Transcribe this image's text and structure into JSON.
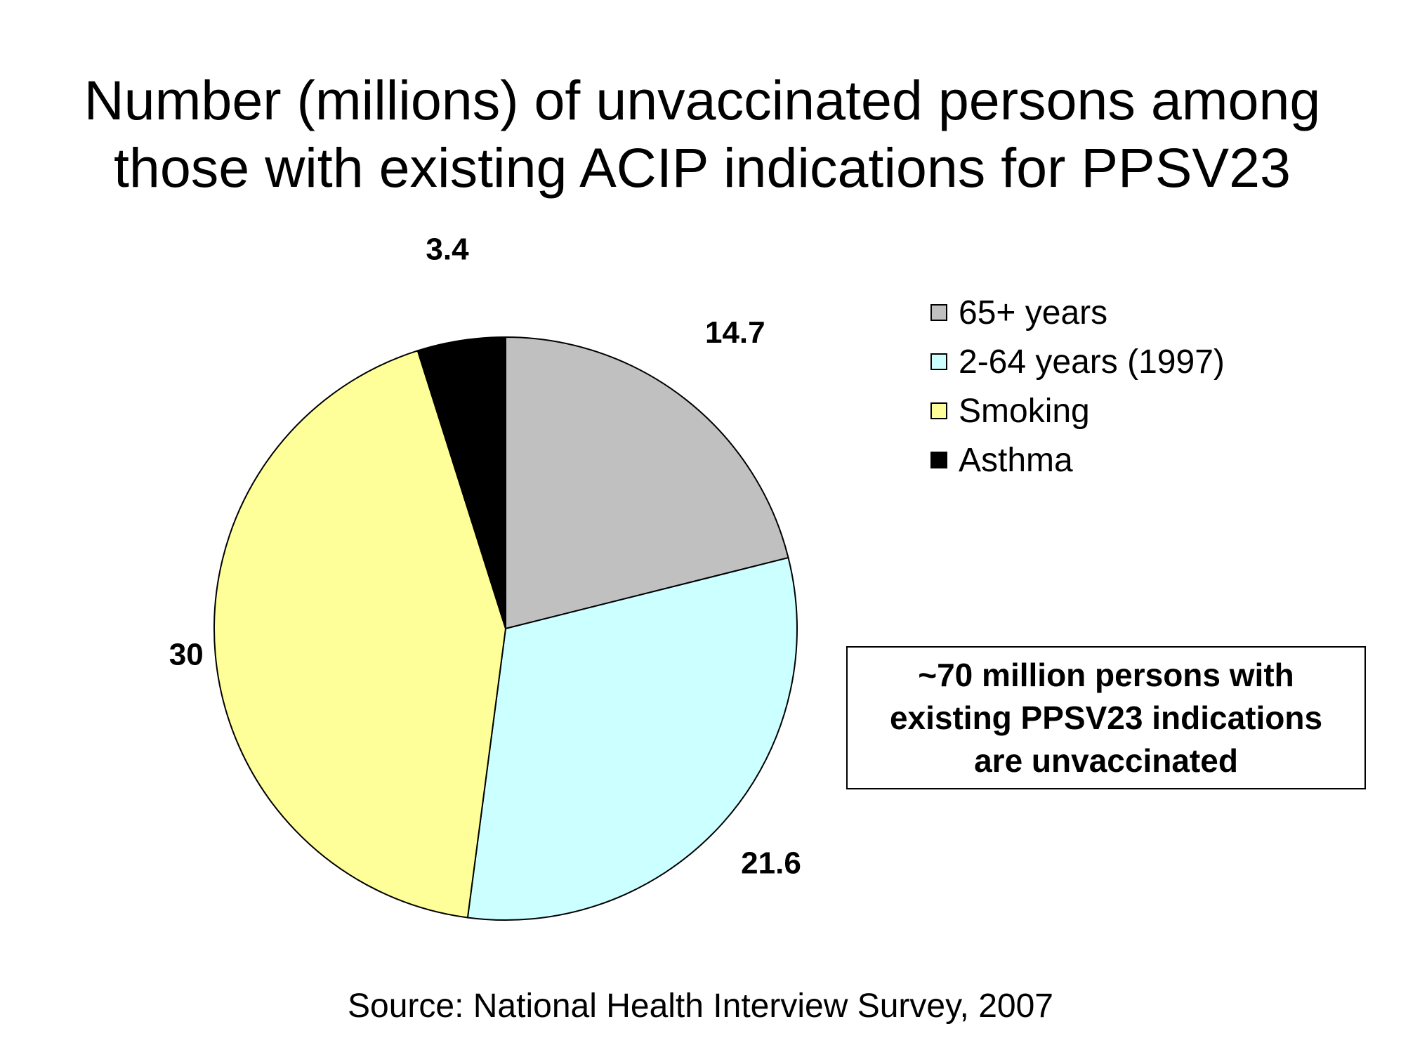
{
  "chart_data": {
    "type": "pie",
    "title": "Number (millions) of unvaccinated persons among those with existing ACIP indications for PPSV23",
    "title_lines": [
      "Number (millions) of unvaccinated persons among",
      "those with existing ACIP indications for PPSV23"
    ],
    "slices": [
      {
        "label": "65+ years",
        "value": 14.7,
        "value_label": "14.7",
        "color": "#c0c0c0"
      },
      {
        "label": "2-64 years (1997)",
        "value": 21.6,
        "value_label": "21.6",
        "color": "#ccffff"
      },
      {
        "label": "Smoking",
        "value": 30,
        "value_label": "30",
        "color": "#ffff99"
      },
      {
        "label": "Asthma",
        "value": 3.4,
        "value_label": "3.4",
        "color": "#000000"
      }
    ],
    "legend": {
      "placement": "top-right"
    },
    "annotation_lines": [
      "~70 million persons with",
      "existing PPSV23 indications",
      "are unvaccinated"
    ],
    "source": "Source: National Health Interview Survey, 2007"
  }
}
